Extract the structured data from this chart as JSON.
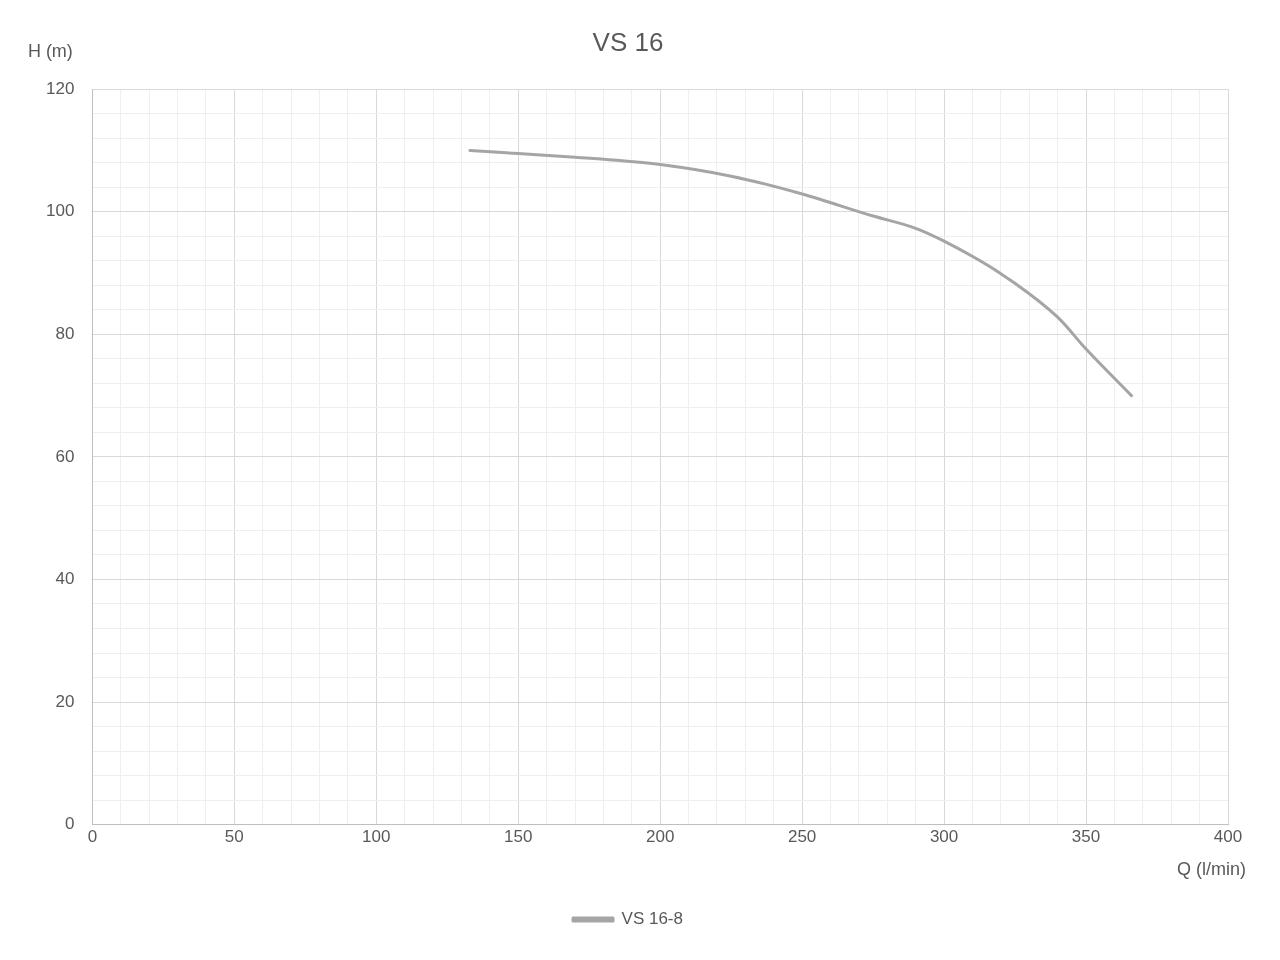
{
  "chart_data": {
    "type": "line",
    "title": "VS 16",
    "xlabel": "Q (l/min)",
    "ylabel": "H (m)",
    "xlim": [
      0,
      400
    ],
    "ylim": [
      0,
      120
    ],
    "xticks": [
      0,
      {
        "value": 10,
        "label": null
      },
      {
        "value": 20,
        "label": null
      },
      {
        "value": 30,
        "label": null
      },
      {
        "value": 40,
        "label": null
      },
      50,
      {
        "value": 60,
        "label": null
      },
      {
        "value": 70,
        "label": null
      },
      {
        "value": 80,
        "label": null
      },
      {
        "value": 90,
        "label": null
      },
      100,
      {
        "value": 110,
        "label": null
      },
      {
        "value": 120,
        "label": null
      },
      {
        "value": 130,
        "label": null
      },
      {
        "value": 140,
        "label": null
      },
      150,
      {
        "value": 160,
        "label": null
      },
      {
        "value": 170,
        "label": null
      },
      {
        "value": 180,
        "label": null
      },
      {
        "value": 190,
        "label": null
      },
      200,
      {
        "value": 210,
        "label": null
      },
      {
        "value": 220,
        "label": null
      },
      {
        "value": 230,
        "label": null
      },
      {
        "value": 240,
        "label": null
      },
      250,
      {
        "value": 260,
        "label": null
      },
      {
        "value": 270,
        "label": null
      },
      {
        "value": 280,
        "label": null
      },
      {
        "value": 290,
        "label": null
      },
      300,
      {
        "value": 310,
        "label": null
      },
      {
        "value": 320,
        "label": null
      },
      {
        "value": 330,
        "label": null
      },
      {
        "value": 340,
        "label": null
      },
      350,
      {
        "value": 360,
        "label": null
      },
      {
        "value": 370,
        "label": null
      },
      {
        "value": 380,
        "label": null
      },
      {
        "value": 390,
        "label": null
      },
      400
    ],
    "yticks": [
      0,
      {
        "value": 4,
        "label": null
      },
      {
        "value": 8,
        "label": null
      },
      {
        "value": 12,
        "label": null
      },
      {
        "value": 16,
        "label": null
      },
      20,
      {
        "value": 24,
        "label": null
      },
      {
        "value": 28,
        "label": null
      },
      {
        "value": 32,
        "label": null
      },
      {
        "value": 36,
        "label": null
      },
      40,
      {
        "value": 44,
        "label": null
      },
      {
        "value": 48,
        "label": null
      },
      {
        "value": 52,
        "label": null
      },
      {
        "value": 56,
        "label": null
      },
      60,
      {
        "value": 64,
        "label": null
      },
      {
        "value": 68,
        "label": null
      },
      {
        "value": 72,
        "label": null
      },
      {
        "value": 76,
        "label": null
      },
      80,
      {
        "value": 84,
        "label": null
      },
      {
        "value": 88,
        "label": null
      },
      {
        "value": 92,
        "label": null
      },
      {
        "value": 96,
        "label": null
      },
      100,
      {
        "value": 104,
        "label": null
      },
      {
        "value": 108,
        "label": null
      },
      {
        "value": 112,
        "label": null
      },
      {
        "value": 116,
        "label": null
      },
      120
    ],
    "grid": true,
    "legend": "bottom",
    "marker": "none",
    "line_style": "solid",
    "series": [
      {
        "name": "VS 16-8",
        "color": "#a5a5a5",
        "x": [
          133,
          150,
          170,
          182,
          200,
          225,
          250,
          275,
          290,
          300,
          320,
          340,
          350,
          366
        ],
        "values": [
          110,
          109.5,
          108.9,
          108.5,
          107.7,
          105.8,
          102.9,
          99.3,
          97.3,
          95.2,
          89.9,
          82.8,
          77.6,
          70
        ]
      }
    ]
  }
}
